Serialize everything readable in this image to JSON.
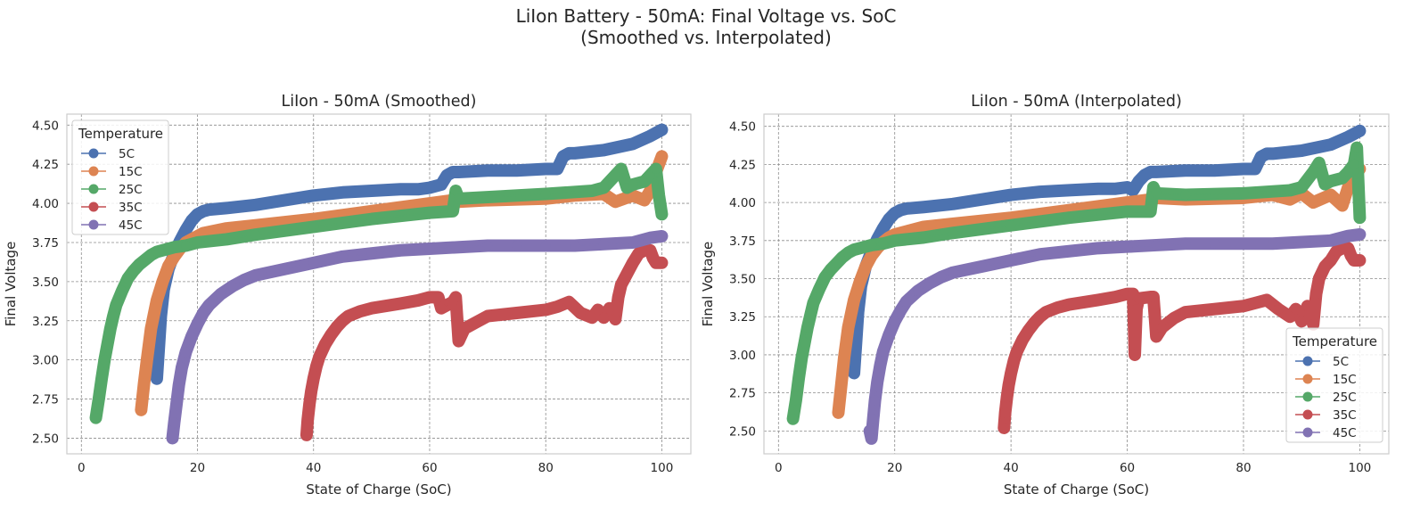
{
  "figure": {
    "suptitle_line1": "LiIon Battery - 50mA: Final Voltage vs. SoC",
    "suptitle_line2": "(Smoothed vs. Interpolated)"
  },
  "chart_data": [
    {
      "type": "line",
      "title": "LiIon - 50mA (Smoothed)",
      "xlabel": "State of Charge (SoC)",
      "ylabel": "Final Voltage",
      "xlim": [
        -2.5,
        105
      ],
      "ylim": [
        2.4,
        4.57
      ],
      "xticks": [
        0,
        20,
        40,
        60,
        80,
        100
      ],
      "xtick_labels": [
        "0",
        "20",
        "40",
        "60",
        "80",
        "100"
      ],
      "yticks": [
        2.5,
        2.75,
        3.0,
        3.25,
        3.5,
        3.75,
        4.0,
        4.25,
        4.5
      ],
      "ytick_labels": [
        "2.50",
        "2.75",
        "3.00",
        "3.25",
        "3.50",
        "3.75",
        "4.00",
        "4.25",
        "4.50"
      ],
      "grid": true,
      "legend": {
        "title": "Temperature",
        "placement": "upper-left"
      },
      "series": [
        {
          "name": "5C",
          "color": "#4c72b0",
          "x": [
            13,
            13.3,
            13.7,
            14.2,
            15,
            16,
            17,
            18,
            19,
            20,
            21,
            22,
            25,
            30,
            35,
            40,
            45,
            50,
            55,
            58,
            60,
            62,
            63,
            64,
            65,
            70,
            75,
            80,
            82,
            83,
            84,
            85,
            90,
            95,
            98,
            100
          ],
          "y": [
            2.88,
            3.05,
            3.28,
            3.45,
            3.58,
            3.68,
            3.76,
            3.83,
            3.89,
            3.93,
            3.95,
            3.96,
            3.97,
            3.99,
            4.02,
            4.05,
            4.07,
            4.08,
            4.09,
            4.09,
            4.1,
            4.12,
            4.18,
            4.2,
            4.2,
            4.21,
            4.21,
            4.22,
            4.22,
            4.3,
            4.32,
            4.32,
            4.34,
            4.38,
            4.43,
            4.47
          ]
        },
        {
          "name": "15C",
          "color": "#dd8452",
          "x": [
            10.3,
            10.8,
            11.3,
            12,
            13,
            14,
            15,
            16,
            17,
            18,
            19,
            20,
            21,
            25,
            30,
            40,
            50,
            60,
            64,
            65,
            70,
            80,
            85,
            90,
            92,
            95,
            97,
            98,
            99,
            100
          ],
          "y": [
            2.68,
            2.85,
            3.0,
            3.2,
            3.38,
            3.5,
            3.6,
            3.66,
            3.71,
            3.75,
            3.77,
            3.79,
            3.81,
            3.84,
            3.86,
            3.9,
            3.95,
            4.0,
            4.02,
            4.01,
            4.02,
            4.03,
            4.05,
            4.06,
            4.01,
            4.05,
            4.02,
            4.08,
            4.2,
            4.3
          ]
        },
        {
          "name": "25C",
          "color": "#55a868",
          "x": [
            2.5,
            3,
            3.5,
            4,
            4.5,
            5,
            5.5,
            6,
            7,
            8,
            9,
            10,
            11,
            12,
            13,
            14,
            15,
            16,
            18,
            20,
            25,
            30,
            40,
            50,
            60,
            64,
            64.5,
            65,
            70,
            80,
            88,
            90,
            92,
            93,
            94,
            95,
            97,
            98,
            99,
            99.5,
            100
          ],
          "y": [
            2.63,
            2.75,
            2.88,
            3.0,
            3.1,
            3.2,
            3.28,
            3.35,
            3.44,
            3.52,
            3.57,
            3.61,
            3.64,
            3.67,
            3.69,
            3.7,
            3.71,
            3.72,
            3.73,
            3.75,
            3.77,
            3.8,
            3.85,
            3.9,
            3.94,
            3.95,
            4.08,
            4.03,
            4.04,
            4.06,
            4.08,
            4.1,
            4.18,
            4.22,
            4.1,
            4.12,
            4.14,
            4.18,
            4.22,
            4.05,
            3.93
          ]
        },
        {
          "name": "35C",
          "color": "#c44e52",
          "x": [
            38.8,
            39,
            39.3,
            39.6,
            40,
            40.5,
            41,
            42,
            43,
            44,
            45,
            46,
            48,
            50,
            55,
            58,
            60,
            61.5,
            62,
            64,
            64.5,
            65,
            66,
            68,
            70,
            75,
            80,
            82,
            84,
            86,
            88,
            89,
            90,
            91,
            92,
            92.5,
            93,
            94,
            95,
            96,
            97,
            98,
            98.5,
            99,
            100
          ],
          "y": [
            2.52,
            2.62,
            2.72,
            2.8,
            2.88,
            2.96,
            3.02,
            3.1,
            3.16,
            3.21,
            3.25,
            3.28,
            3.31,
            3.33,
            3.36,
            3.38,
            3.4,
            3.4,
            3.33,
            3.37,
            3.4,
            3.12,
            3.2,
            3.24,
            3.28,
            3.3,
            3.32,
            3.34,
            3.37,
            3.3,
            3.27,
            3.32,
            3.27,
            3.33,
            3.26,
            3.4,
            3.48,
            3.55,
            3.62,
            3.68,
            3.7,
            3.7,
            3.65,
            3.62,
            3.62
          ]
        },
        {
          "name": "45C",
          "color": "#8172b3",
          "x": [
            15.7,
            16,
            16.4,
            16.8,
            17.3,
            18,
            19,
            20,
            21,
            22,
            24,
            26,
            28,
            30,
            35,
            40,
            45,
            50,
            55,
            60,
            65,
            70,
            75,
            80,
            85,
            90,
            95,
            98,
            100
          ],
          "y": [
            2.5,
            2.6,
            2.72,
            2.84,
            2.95,
            3.05,
            3.15,
            3.23,
            3.3,
            3.35,
            3.42,
            3.47,
            3.51,
            3.54,
            3.58,
            3.62,
            3.66,
            3.68,
            3.7,
            3.71,
            3.72,
            3.73,
            3.73,
            3.73,
            3.73,
            3.74,
            3.75,
            3.78,
            3.79
          ]
        }
      ]
    },
    {
      "type": "line",
      "title": "LiIon - 50mA (Interpolated)",
      "xlabel": "State of Charge (SoC)",
      "ylabel": "Final Voltage",
      "xlim": [
        -2.5,
        105
      ],
      "ylim": [
        2.35,
        4.58
      ],
      "xticks": [
        0,
        20,
        40,
        60,
        80,
        100
      ],
      "xtick_labels": [
        "0",
        "20",
        "40",
        "60",
        "80",
        "100"
      ],
      "yticks": [
        2.5,
        2.75,
        3.0,
        3.25,
        3.5,
        3.75,
        4.0,
        4.25,
        4.5
      ],
      "ytick_labels": [
        "2.50",
        "2.75",
        "3.00",
        "3.25",
        "3.50",
        "3.75",
        "4.00",
        "4.25",
        "4.50"
      ],
      "grid": true,
      "legend": {
        "title": "Temperature",
        "placement": "lower-right"
      },
      "series": [
        {
          "name": "5C",
          "color": "#4c72b0",
          "x": [
            13,
            13.3,
            13.7,
            14.2,
            15,
            16,
            17,
            18,
            19,
            20,
            21,
            22,
            25,
            30,
            35,
            40,
            45,
            50,
            55,
            58,
            60,
            61,
            62,
            63,
            64,
            65,
            70,
            75,
            80,
            82,
            83,
            84,
            85,
            90,
            95,
            98,
            100
          ],
          "y": [
            2.88,
            3.05,
            3.28,
            3.45,
            3.58,
            3.68,
            3.76,
            3.83,
            3.89,
            3.93,
            3.95,
            3.96,
            3.97,
            3.99,
            4.02,
            4.05,
            4.07,
            4.08,
            4.09,
            4.09,
            4.1,
            4.08,
            4.14,
            4.18,
            4.2,
            4.2,
            4.21,
            4.21,
            4.22,
            4.22,
            4.3,
            4.32,
            4.32,
            4.34,
            4.38,
            4.43,
            4.47
          ]
        },
        {
          "name": "15C",
          "color": "#dd8452",
          "x": [
            10.3,
            10.8,
            11.3,
            12,
            13,
            14,
            15,
            16,
            17,
            18,
            19,
            20,
            21,
            25,
            30,
            40,
            50,
            60,
            64,
            65,
            70,
            80,
            85,
            88,
            90,
            92,
            95,
            97,
            98,
            99,
            100
          ],
          "y": [
            2.62,
            2.8,
            2.98,
            3.18,
            3.36,
            3.48,
            3.58,
            3.65,
            3.7,
            3.74,
            3.77,
            3.79,
            3.8,
            3.84,
            3.86,
            3.9,
            3.95,
            4.0,
            4.02,
            4.03,
            4.02,
            4.03,
            4.05,
            4.02,
            4.06,
            4.0,
            4.05,
            3.98,
            4.1,
            4.18,
            4.22
          ]
        },
        {
          "name": "25C",
          "color": "#55a868",
          "x": [
            2.5,
            3,
            3.5,
            4,
            4.5,
            5,
            5.5,
            6,
            7,
            8,
            9,
            10,
            11,
            12,
            13,
            14,
            15,
            16,
            18,
            20,
            25,
            30,
            40,
            50,
            60,
            64,
            64.5,
            65,
            70,
            80,
            88,
            90,
            92,
            93,
            94,
            95,
            97,
            98,
            99,
            99.5,
            100
          ],
          "y": [
            2.58,
            2.7,
            2.85,
            2.98,
            3.08,
            3.18,
            3.26,
            3.34,
            3.43,
            3.51,
            3.56,
            3.6,
            3.64,
            3.67,
            3.69,
            3.7,
            3.71,
            3.72,
            3.73,
            3.75,
            3.77,
            3.8,
            3.85,
            3.9,
            3.94,
            3.94,
            4.1,
            4.06,
            4.05,
            4.06,
            4.08,
            4.1,
            4.2,
            4.26,
            4.12,
            4.14,
            4.16,
            4.2,
            4.25,
            4.36,
            3.9
          ]
        },
        {
          "name": "35C",
          "color": "#c44e52",
          "x": [
            38.8,
            39,
            39.3,
            39.6,
            40,
            40.5,
            41,
            42,
            43,
            44,
            45,
            46,
            48,
            50,
            55,
            58,
            60,
            61,
            61.3,
            61.6,
            62,
            64,
            64.5,
            65,
            66,
            68,
            70,
            75,
            80,
            82,
            84,
            86,
            88,
            89,
            90,
            91,
            92,
            92.5,
            93,
            94,
            95,
            96,
            97,
            98,
            98.5,
            99,
            100
          ],
          "y": [
            2.52,
            2.62,
            2.72,
            2.8,
            2.88,
            2.96,
            3.02,
            3.1,
            3.16,
            3.21,
            3.25,
            3.28,
            3.31,
            3.33,
            3.36,
            3.38,
            3.4,
            3.4,
            3.0,
            3.3,
            3.37,
            3.38,
            3.38,
            3.12,
            3.18,
            3.24,
            3.28,
            3.3,
            3.32,
            3.34,
            3.36,
            3.3,
            3.25,
            3.3,
            3.22,
            3.32,
            3.2,
            3.4,
            3.5,
            3.58,
            3.62,
            3.68,
            3.7,
            3.7,
            3.65,
            3.62,
            3.62
          ]
        },
        {
          "name": "45C",
          "color": "#8172b3",
          "x": [
            15.7,
            16,
            16.3,
            16.6,
            17,
            17.5,
            18,
            19,
            20,
            21,
            22,
            24,
            26,
            28,
            30,
            35,
            40,
            45,
            50,
            55,
            60,
            65,
            70,
            75,
            80,
            85,
            90,
            95,
            98,
            100
          ],
          "y": [
            2.5,
            2.45,
            2.58,
            2.7,
            2.82,
            2.93,
            3.02,
            3.13,
            3.22,
            3.29,
            3.35,
            3.42,
            3.47,
            3.51,
            3.54,
            3.58,
            3.62,
            3.66,
            3.68,
            3.7,
            3.71,
            3.72,
            3.73,
            3.73,
            3.73,
            3.73,
            3.74,
            3.75,
            3.78,
            3.79
          ]
        }
      ]
    }
  ]
}
